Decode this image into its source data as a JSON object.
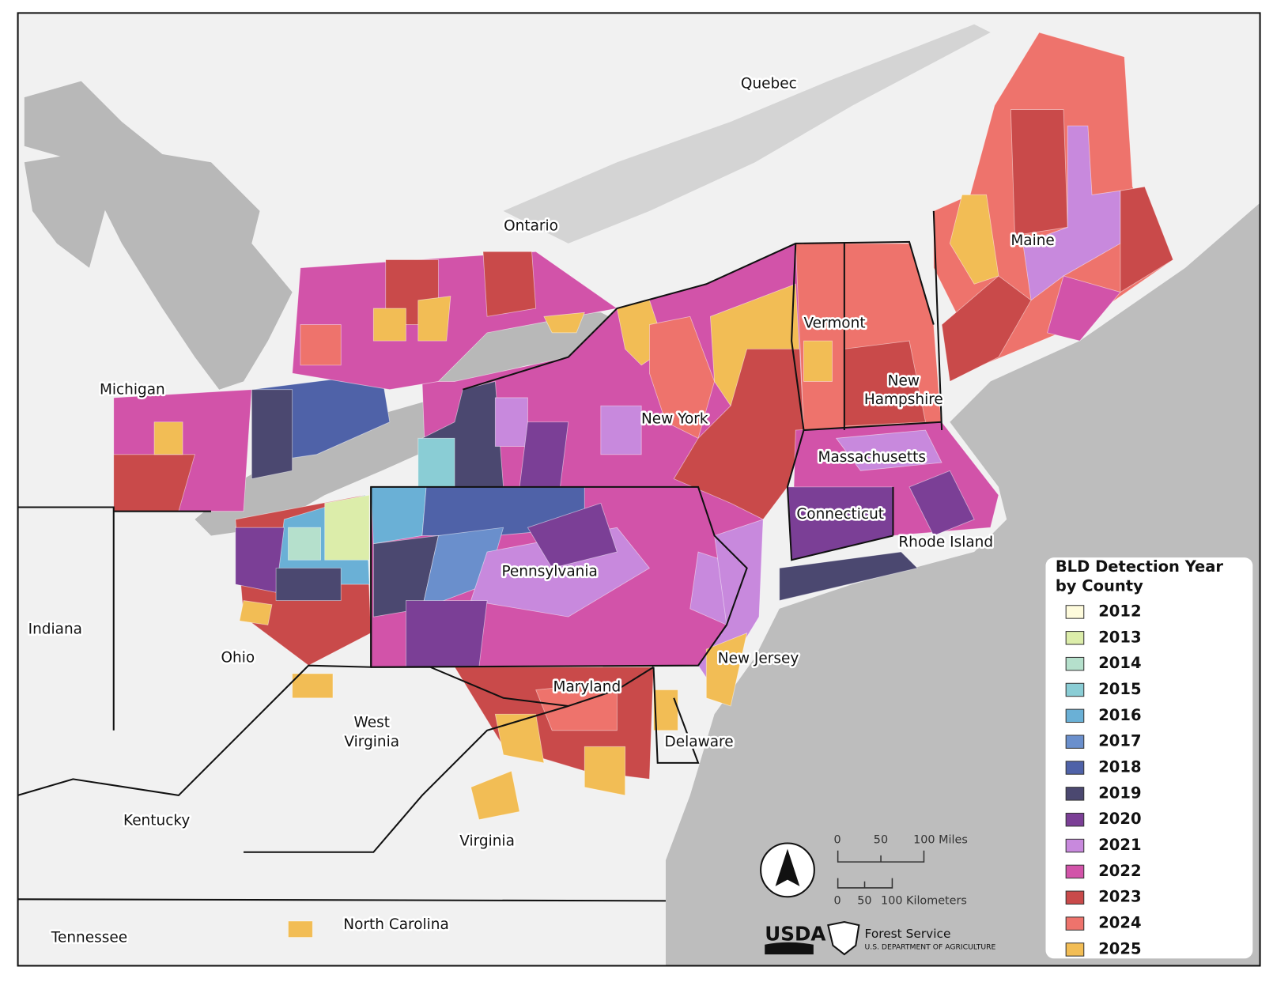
{
  "places": {
    "quebec": "Quebec",
    "ontario": "Ontario",
    "michigan": "Michigan",
    "maine": "Maine",
    "vermont": "Vermont",
    "new_hampshire": [
      "New",
      "Hampshire"
    ],
    "new_york": "New York",
    "massachusetts": "Massachusetts",
    "connecticut": "Connecticut",
    "rhode_island": "Rhode Island",
    "pennsylvania": "Pennsylvania",
    "indiana": "Indiana",
    "ohio": "Ohio",
    "new_jersey": "New Jersey",
    "maryland": "Maryland",
    "west_virginia": [
      "West",
      "Virginia"
    ],
    "delaware": "Delaware",
    "kentucky": "Kentucky",
    "virginia": "Virginia",
    "north_carolina": "North Carolina",
    "tennessee": "Tennessee"
  },
  "legend": {
    "title": [
      "BLD Detection Year",
      "by County"
    ],
    "entries": [
      {
        "label": "2012",
        "color": "#fefbdc"
      },
      {
        "label": "2013",
        "color": "#dcedaa"
      },
      {
        "label": "2014",
        "color": "#b5e0cc"
      },
      {
        "label": "2015",
        "color": "#8acdd5"
      },
      {
        "label": "2016",
        "color": "#6ab0d6"
      },
      {
        "label": "2017",
        "color": "#6a8fcc"
      },
      {
        "label": "2018",
        "color": "#4f62a8"
      },
      {
        "label": "2019",
        "color": "#4b4870"
      },
      {
        "label": "2020",
        "color": "#7b3f96"
      },
      {
        "label": "2021",
        "color": "#c889dd"
      },
      {
        "label": "2022",
        "color": "#d253a9"
      },
      {
        "label": "2023",
        "color": "#c94a4a"
      },
      {
        "label": "2024",
        "color": "#ee736c"
      },
      {
        "label": "2025",
        "color": "#f2bd55"
      }
    ]
  },
  "scale_bar": {
    "miles": [
      "0",
      "50",
      "100  Miles"
    ],
    "kilometers": [
      "0",
      "50",
      "100 Kilometers"
    ]
  },
  "logos": {
    "usda": "USDA",
    "agency": "Forest Service",
    "department": "U.S. DEPARTMENT OF AGRICULTURE"
  }
}
